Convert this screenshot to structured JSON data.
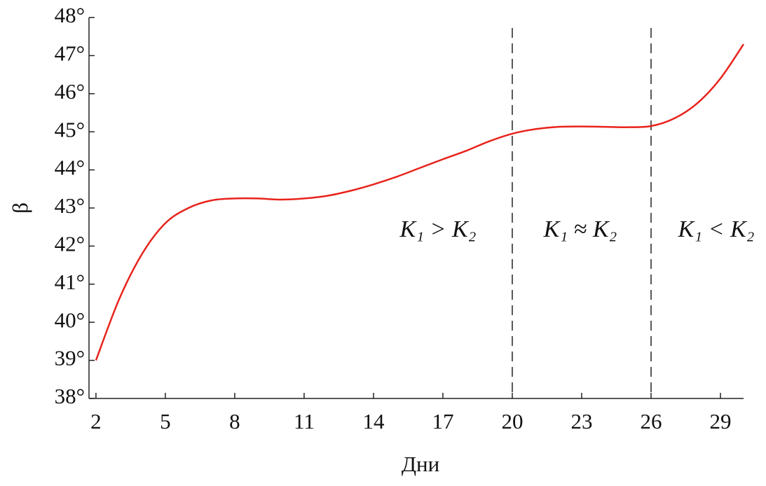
{
  "chart_data": {
    "type": "line",
    "x_label": "Дни",
    "y_label": "β",
    "x": [
      2,
      3,
      4,
      5,
      6,
      7,
      8,
      9,
      10,
      11,
      12,
      13,
      14,
      15,
      16,
      17,
      18,
      19,
      20,
      21,
      22,
      23,
      24,
      25,
      26,
      27,
      28,
      29,
      30
    ],
    "series": [
      {
        "color": "#e8231c",
        "values": [
          39.0,
          40.6,
          41.8,
          42.6,
          43.0,
          43.2,
          43.25,
          43.25,
          43.22,
          43.25,
          43.32,
          43.45,
          43.62,
          43.82,
          44.05,
          44.28,
          44.5,
          44.75,
          44.95,
          45.07,
          45.13,
          45.14,
          45.13,
          45.12,
          45.15,
          45.35,
          45.75,
          46.4,
          47.3
        ]
      }
    ],
    "xlim": [
      1.7,
      30
    ],
    "ylim": [
      38,
      48
    ],
    "xticks": [
      2,
      5,
      8,
      11,
      14,
      17,
      20,
      23,
      26,
      29
    ],
    "yticks": [
      {
        "value": 38,
        "label": "38°"
      },
      {
        "value": 39,
        "label": "39°"
      },
      {
        "value": 40,
        "label": "40°"
      },
      {
        "value": 41,
        "label": "41°"
      },
      {
        "value": 42,
        "label": "42°"
      },
      {
        "value": 43,
        "label": "43°"
      },
      {
        "value": 44,
        "label": "44°"
      },
      {
        "value": 45,
        "label": "45°"
      },
      {
        "value": 46,
        "label": "46°"
      },
      {
        "value": 47,
        "label": "47°"
      },
      {
        "value": 48,
        "label": "48°"
      }
    ],
    "vlines": [
      20,
      26
    ],
    "annotations": [
      "K₁ > K₂",
      "K₁ ≈ K₂",
      "K₁ < K₂"
    ]
  }
}
